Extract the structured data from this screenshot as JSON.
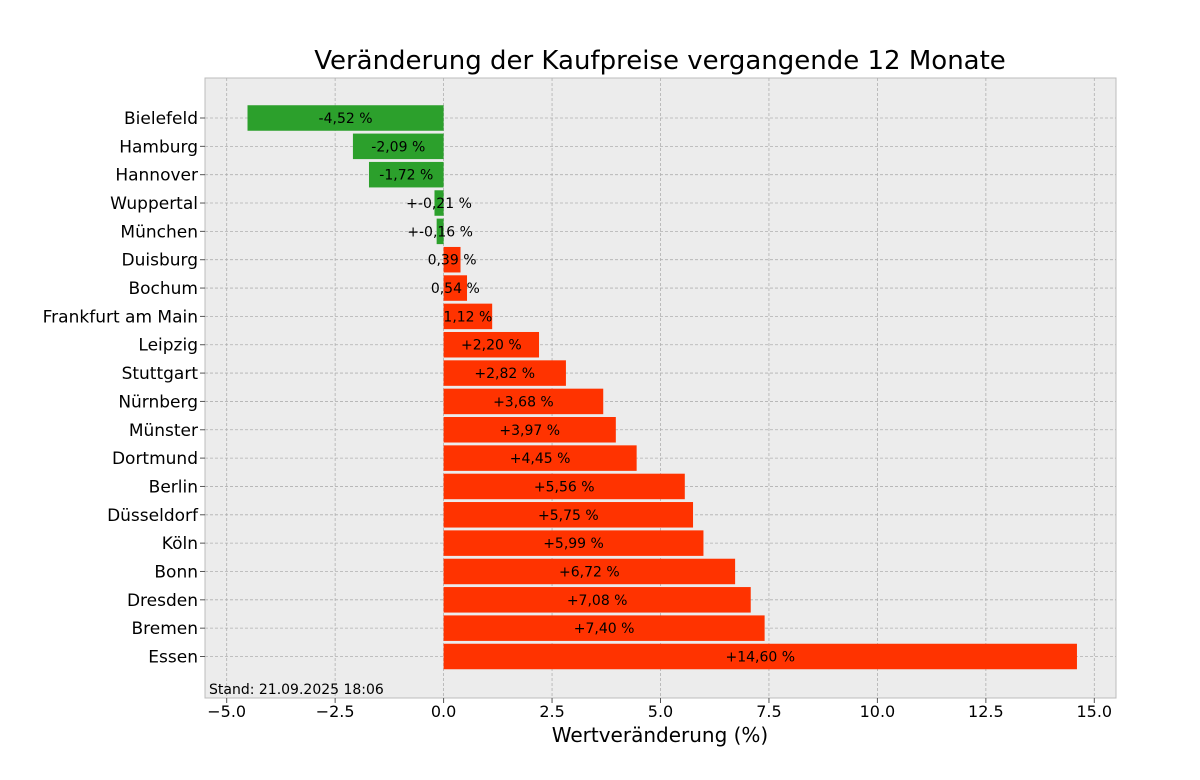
{
  "chart_data": {
    "type": "bar",
    "orientation": "horizontal",
    "title": "Veränderung der Kaufpreise vergangende 12 Monate",
    "xlabel": "Wertveränderung (%)",
    "ylabel": "",
    "xlim": [
      -5.5,
      15.5
    ],
    "xticks": [
      -5.0,
      -2.5,
      0.0,
      2.5,
      5.0,
      7.5,
      10.0,
      12.5,
      15.0
    ],
    "xtick_labels": [
      "−5.0",
      "−2.5",
      "0.0",
      "2.5",
      "5.0",
      "7.5",
      "10.0",
      "12.5",
      "15.0"
    ],
    "grid": true,
    "categories": [
      "Bielefeld",
      "Hamburg",
      "Hannover",
      "Wuppertal",
      "München",
      "Duisburg",
      "Bochum",
      "Frankfurt am Main",
      "Leipzig",
      "Stuttgart",
      "Nürnberg",
      "Münster",
      "Dortmund",
      "Berlin",
      "Düsseldorf",
      "Köln",
      "Bonn",
      "Dresden",
      "Bremen",
      "Essen"
    ],
    "values": [
      -4.52,
      -2.09,
      -1.72,
      -0.21,
      -0.16,
      0.39,
      0.54,
      1.12,
      2.2,
      2.82,
      3.68,
      3.97,
      4.45,
      5.56,
      5.75,
      5.99,
      6.72,
      7.08,
      7.4,
      14.6
    ],
    "value_labels": [
      "-4,52 %",
      "-2,09 %",
      "-1,72 %",
      "+-0,21 %",
      "+-0,16 %",
      "0,39 %",
      "0,54 %",
      "1,12 %",
      "+2,20 %",
      "+2,82 %",
      "+3,68 %",
      "+3,97 %",
      "+4,45 %",
      "+5,56 %",
      "+5,75 %",
      "+5,99 %",
      "+6,72 %",
      "+7,08 %",
      "+7,40 %",
      "+14,60 %"
    ],
    "colors": {
      "negative": "#2ca02c",
      "positive": "#ff3300",
      "plot_background": "#ececec",
      "grid": "#b0b0b0"
    },
    "annotation": "Stand: 21.09.2025 18:06"
  }
}
